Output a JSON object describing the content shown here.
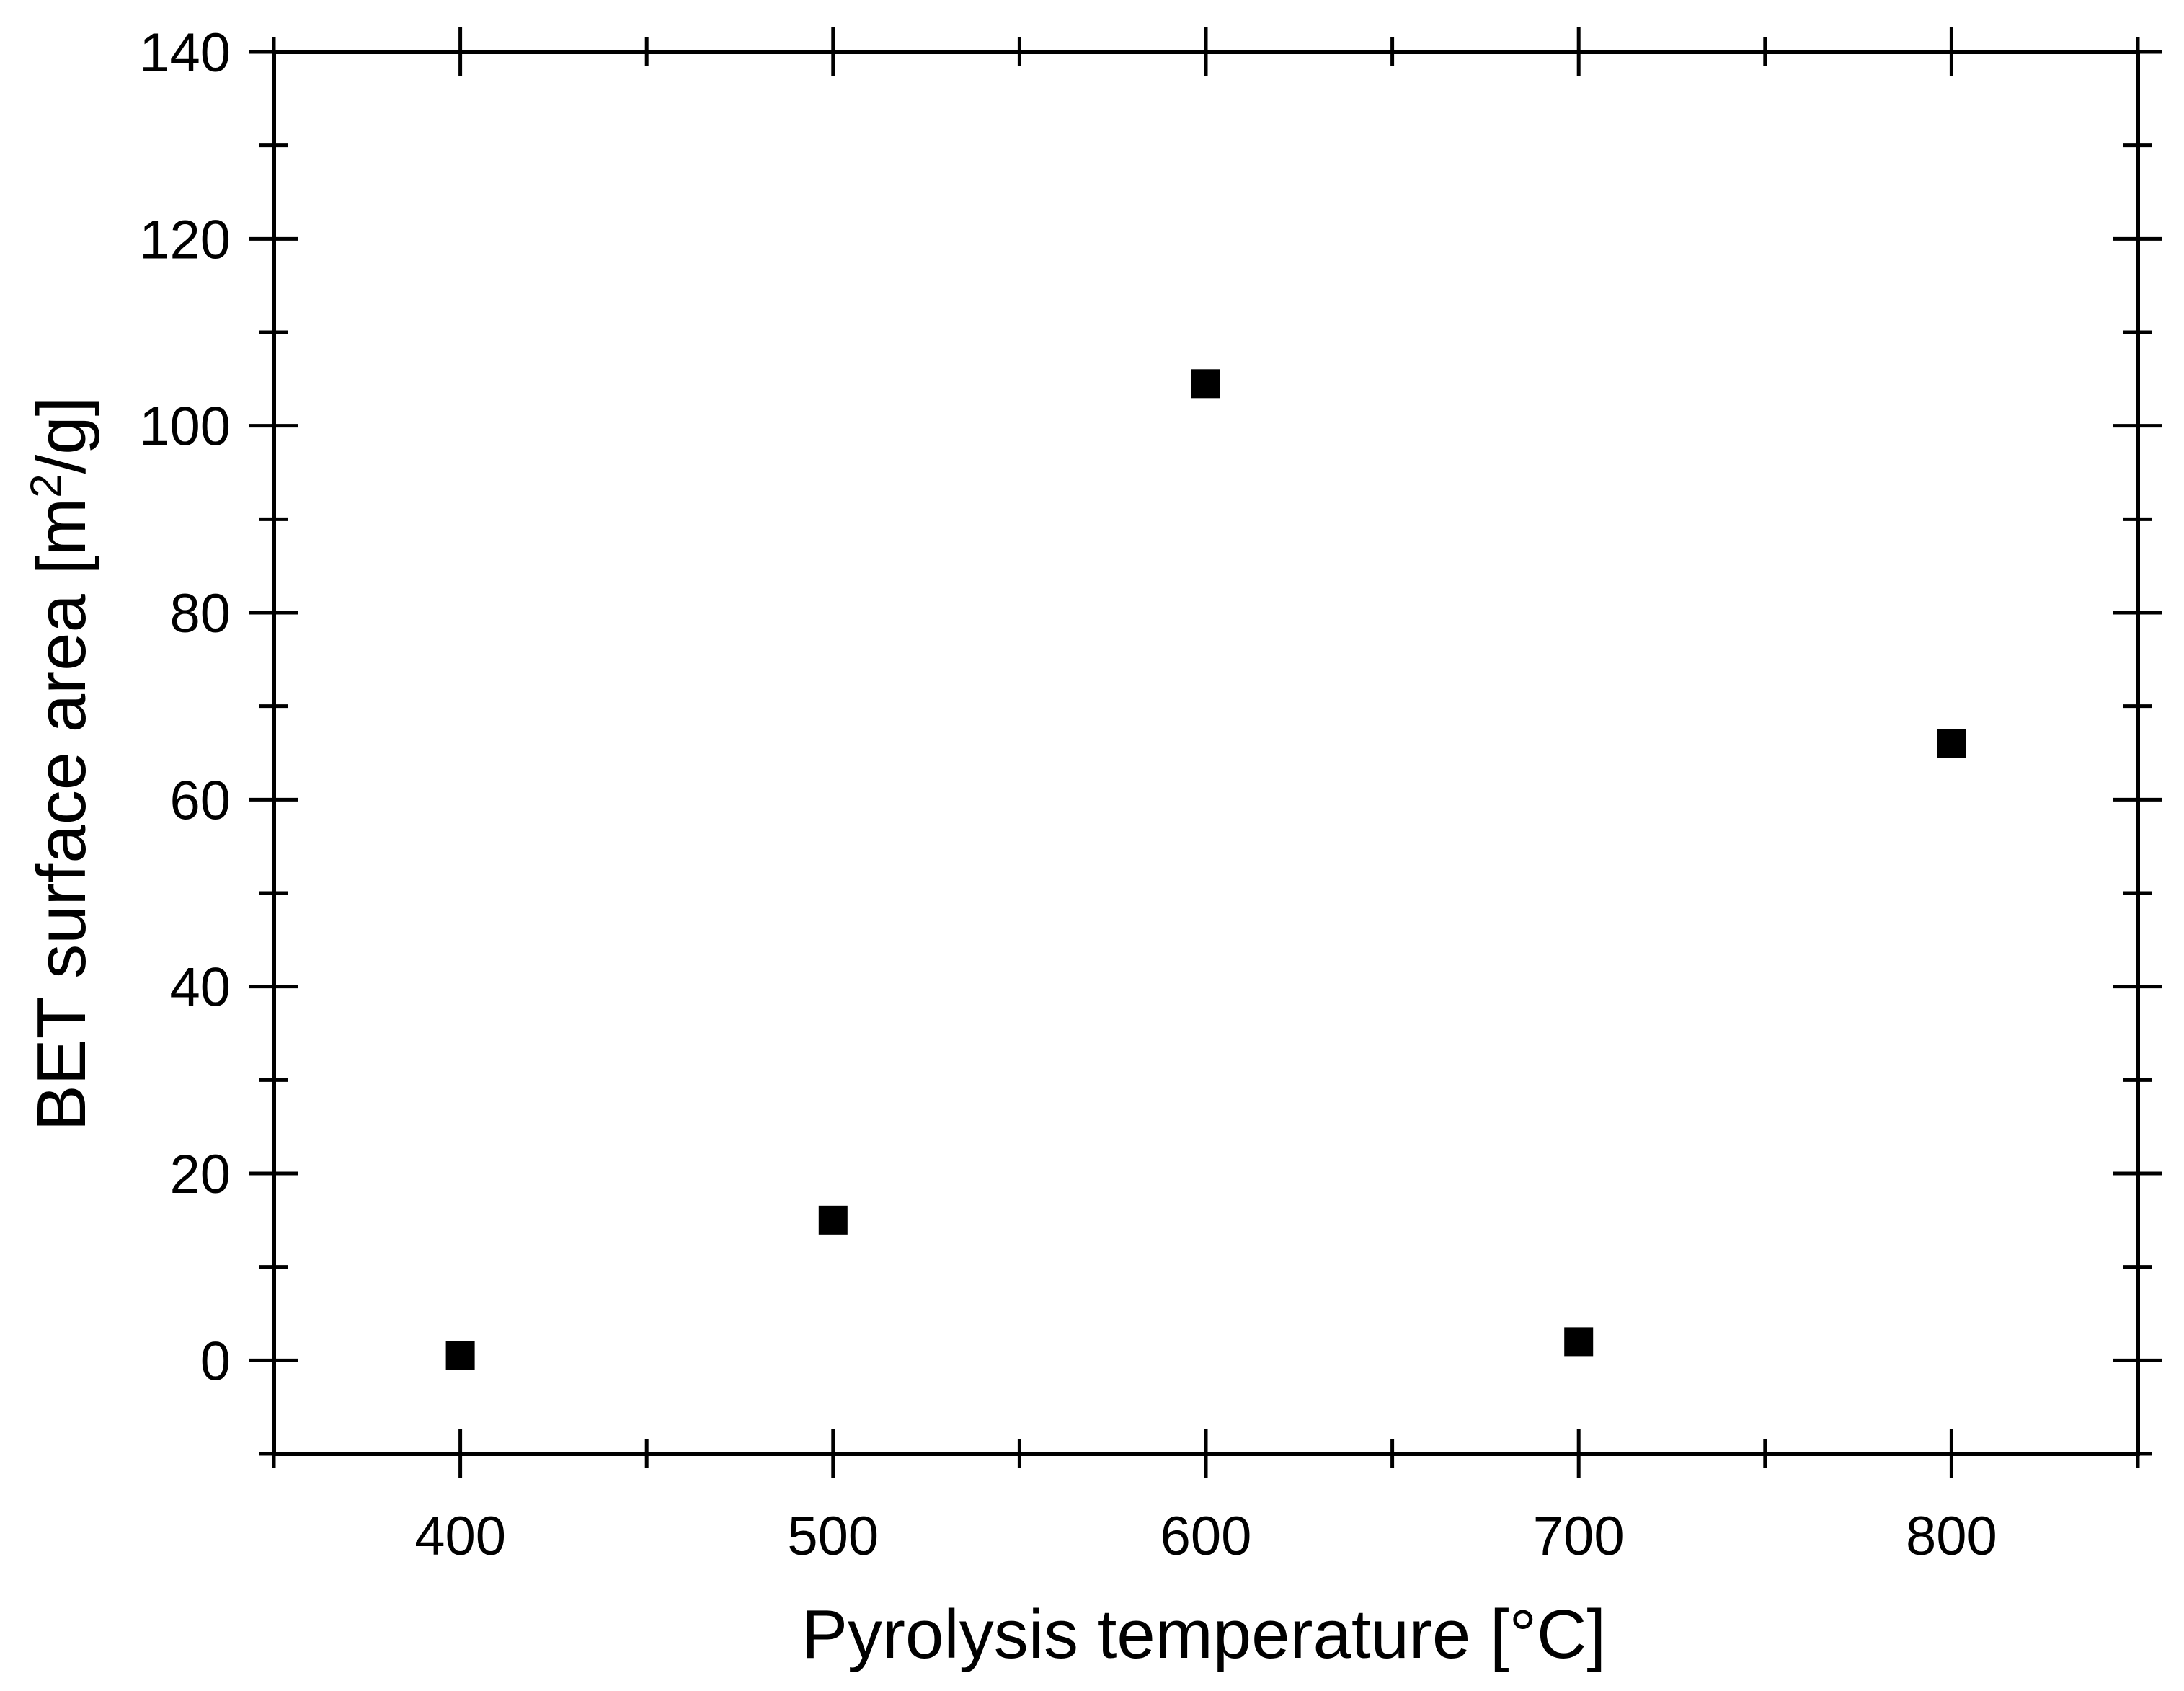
{
  "chart_data": {
    "type": "scatter",
    "xlabel": "Pyrolysis temperature [°C]",
    "ylabel_main": "BET surface area [m",
    "ylabel_sup": "2",
    "ylabel_end": "/g]",
    "xlim": [
      350,
      850
    ],
    "ylim": [
      -10,
      140
    ],
    "x_ticks": [
      400,
      500,
      600,
      700,
      800
    ],
    "x_minor_ticks": [
      350,
      450,
      550,
      650,
      750,
      850
    ],
    "y_ticks": [
      0,
      20,
      40,
      60,
      80,
      100,
      120,
      140
    ],
    "y_minor_ticks": [
      -10,
      10,
      30,
      50,
      70,
      90,
      110,
      130
    ],
    "grid": false,
    "marker": "square",
    "marker_color": "#000000",
    "points": [
      {
        "x": 400,
        "y": 0.5
      },
      {
        "x": 500,
        "y": 15
      },
      {
        "x": 600,
        "y": 104.5
      },
      {
        "x": 700,
        "y": 2
      },
      {
        "x": 800,
        "y": 66
      }
    ]
  }
}
